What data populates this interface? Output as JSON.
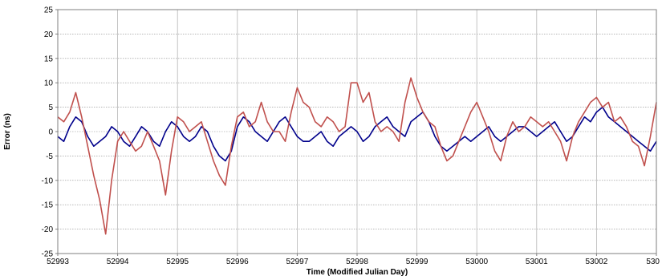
{
  "chart_data": {
    "type": "line",
    "title": "",
    "xlabel": "Time (Modified Julian Day)",
    "ylabel": "Error (ns)",
    "xlim": [
      52993,
      53003
    ],
    "ylim": [
      -25,
      25
    ],
    "x_ticks": [
      "52993",
      "52994",
      "52995",
      "52996",
      "52997",
      "52998",
      "52999",
      "53000",
      "53001",
      "53002",
      "530"
    ],
    "y_ticks": [
      "25",
      "20",
      "15",
      "10",
      "5",
      "0",
      "-5",
      "-10",
      "-15",
      "-20",
      "-25"
    ],
    "grid": true,
    "legend": "none",
    "series": [
      {
        "color": "#00008b",
        "x": [
          52993.0,
          52993.1,
          52993.2,
          52993.3,
          52993.4,
          52993.5,
          52993.6,
          52993.7,
          52993.8,
          52993.9,
          52994.0,
          52994.1,
          52994.2,
          52994.3,
          52994.4,
          52994.5,
          52994.6,
          52994.7,
          52994.8,
          52994.9,
          52995.0,
          52995.1,
          52995.2,
          52995.3,
          52995.4,
          52995.5,
          52995.6,
          52995.7,
          52995.8,
          52995.9,
          52996.0,
          52996.1,
          52996.2,
          52996.3,
          52996.4,
          52996.5,
          52996.6,
          52996.7,
          52996.8,
          52996.9,
          52997.0,
          52997.1,
          52997.2,
          52997.3,
          52997.4,
          52997.5,
          52997.6,
          52997.7,
          52997.8,
          52997.9,
          52998.0,
          52998.1,
          52998.2,
          52998.3,
          52998.4,
          52998.5,
          52998.6,
          52998.7,
          52998.8,
          52998.9,
          52999.0,
          52999.1,
          52999.2,
          52999.3,
          52999.4,
          52999.5,
          52999.6,
          52999.7,
          52999.8,
          52999.9,
          53000.0,
          53000.1,
          53000.2,
          53000.3,
          53000.4,
          53000.5,
          53000.6,
          53000.7,
          53000.8,
          53000.9,
          53001.0,
          53001.1,
          53001.2,
          53001.3,
          53001.4,
          53001.5,
          53001.6,
          53001.7,
          53001.8,
          53001.9,
          53002.0,
          53002.1,
          53002.2,
          53002.3,
          53002.4,
          53002.5,
          53002.6,
          53002.7,
          53002.8,
          53002.9,
          53003.0
        ],
        "y": [
          -1,
          -2,
          1,
          3,
          2,
          -1,
          -3,
          -2,
          -1,
          1,
          0,
          -2,
          -3,
          -1,
          1,
          0,
          -2,
          -3,
          0,
          2,
          1,
          -1,
          -2,
          -1,
          1,
          0,
          -3,
          -5,
          -6,
          -4,
          1,
          3,
          2,
          0,
          -1,
          -2,
          0,
          2,
          3,
          1,
          -1,
          -2,
          -2,
          -1,
          0,
          -2,
          -3,
          -1,
          0,
          1,
          0,
          -2,
          -1,
          1,
          2,
          3,
          1,
          0,
          -1,
          2,
          3,
          4,
          2,
          -1,
          -3,
          -4,
          -3,
          -2,
          -1,
          -2,
          -1,
          0,
          1,
          -1,
          -2,
          -1,
          0,
          1,
          1,
          0,
          -1,
          0,
          1,
          2,
          0,
          -2,
          -1,
          1,
          3,
          2,
          4,
          5,
          3,
          2,
          1,
          0,
          -1,
          -2,
          -3,
          -4,
          -2
        ]
      },
      {
        "color": "#c0504d",
        "x": [
          52993.0,
          52993.1,
          52993.2,
          52993.3,
          52993.4,
          52993.5,
          52993.6,
          52993.7,
          52993.8,
          52993.9,
          52994.0,
          52994.1,
          52994.2,
          52994.3,
          52994.4,
          52994.5,
          52994.6,
          52994.7,
          52994.8,
          52994.9,
          52995.0,
          52995.1,
          52995.2,
          52995.3,
          52995.4,
          52995.5,
          52995.6,
          52995.7,
          52995.8,
          52995.9,
          52996.0,
          52996.1,
          52996.2,
          52996.3,
          52996.4,
          52996.5,
          52996.6,
          52996.7,
          52996.8,
          52996.9,
          52997.0,
          52997.1,
          52997.2,
          52997.3,
          52997.4,
          52997.5,
          52997.6,
          52997.7,
          52997.8,
          52997.9,
          52998.0,
          52998.1,
          52998.2,
          52998.3,
          52998.4,
          52998.5,
          52998.6,
          52998.7,
          52998.8,
          52998.9,
          52999.0,
          52999.1,
          52999.2,
          52999.3,
          52999.4,
          52999.5,
          52999.6,
          52999.7,
          52999.8,
          52999.9,
          53000.0,
          53000.1,
          53000.2,
          53000.3,
          53000.4,
          53000.5,
          53000.6,
          53000.7,
          53000.8,
          53000.9,
          53001.0,
          53001.1,
          53001.2,
          53001.3,
          53001.4,
          53001.5,
          53001.6,
          53001.7,
          53001.8,
          53001.9,
          53002.0,
          53002.1,
          53002.2,
          53002.3,
          53002.4,
          53002.5,
          53002.6,
          53002.7,
          53002.8,
          53002.9,
          53003.0
        ],
        "y": [
          3,
          2,
          4,
          8,
          3,
          -3,
          -9,
          -14,
          -21,
          -10,
          -2,
          0,
          -2,
          -4,
          -3,
          0,
          -3,
          -6,
          -13,
          -4,
          3,
          2,
          0,
          1,
          2,
          -2,
          -6,
          -9,
          -11,
          -3,
          3,
          4,
          1,
          2,
          6,
          2,
          0,
          0,
          -2,
          4,
          9,
          6,
          5,
          2,
          1,
          3,
          2,
          0,
          1,
          10,
          10,
          6,
          8,
          2,
          0,
          1,
          0,
          -2,
          6,
          11,
          7,
          4,
          2,
          1,
          -3,
          -6,
          -5,
          -2,
          1,
          4,
          6,
          3,
          0,
          -4,
          -6,
          -1,
          2,
          0,
          1,
          3,
          2,
          1,
          2,
          0,
          -2,
          -6,
          -1,
          2,
          4,
          6,
          7,
          5,
          6,
          2,
          3,
          1,
          -2,
          -3,
          -7,
          -1,
          6
        ]
      }
    ]
  }
}
